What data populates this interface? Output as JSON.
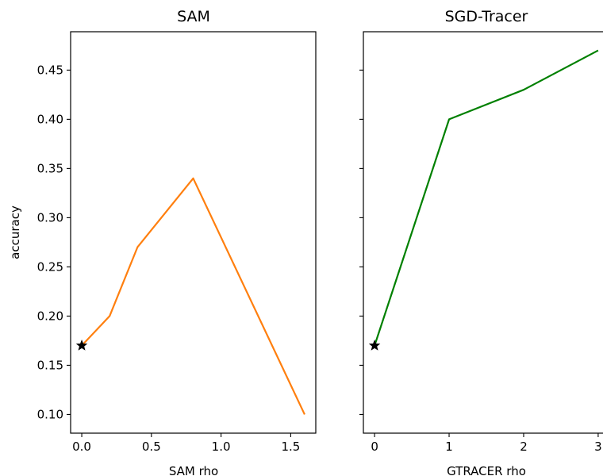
{
  "chart_data": [
    {
      "type": "line",
      "title": "SAM",
      "xlabel": "SAM rho",
      "ylabel": "accuracy",
      "x": [
        0.0,
        0.2,
        0.4,
        0.8,
        1.6
      ],
      "series": [
        {
          "values": [
            0.17,
            0.2,
            0.27,
            0.34,
            0.1
          ],
          "color": "#ff7f0e"
        }
      ],
      "marker": {
        "x": 0.0,
        "y": 0.17,
        "shape": "star",
        "color": "#000000"
      },
      "xlim": [
        -0.08,
        1.68
      ],
      "ylim": [
        0.081,
        0.489
      ],
      "xticks": [
        0.0,
        0.5,
        1.0,
        1.5
      ],
      "xtick_labels": [
        "0.0",
        "0.5",
        "1.0",
        "1.5"
      ],
      "yticks": [
        0.1,
        0.15,
        0.2,
        0.25,
        0.3,
        0.35,
        0.4,
        0.45
      ],
      "ytick_labels": [
        "0.10",
        "0.15",
        "0.20",
        "0.25",
        "0.30",
        "0.35",
        "0.40",
        "0.45"
      ],
      "grid": false
    },
    {
      "type": "line",
      "title": "SGD-Tracer",
      "xlabel": "GTRACER rho",
      "ylabel": "",
      "x": [
        0,
        1,
        2,
        3
      ],
      "series": [
        {
          "values": [
            0.17,
            0.4,
            0.43,
            0.47
          ],
          "color": "#008000"
        }
      ],
      "marker": {
        "x": 0,
        "y": 0.17,
        "shape": "star",
        "color": "#000000"
      },
      "xlim": [
        -0.15,
        3.15
      ],
      "ylim": [
        0.081,
        0.489
      ],
      "xticks": [
        0,
        1,
        2,
        3
      ],
      "xtick_labels": [
        "0",
        "1",
        "2",
        "3"
      ],
      "yticks": [
        0.1,
        0.15,
        0.2,
        0.25,
        0.3,
        0.35,
        0.4,
        0.45
      ],
      "ytick_labels": [
        "",
        "",
        "",
        "",
        "",
        "",
        "",
        ""
      ],
      "grid": false
    }
  ]
}
